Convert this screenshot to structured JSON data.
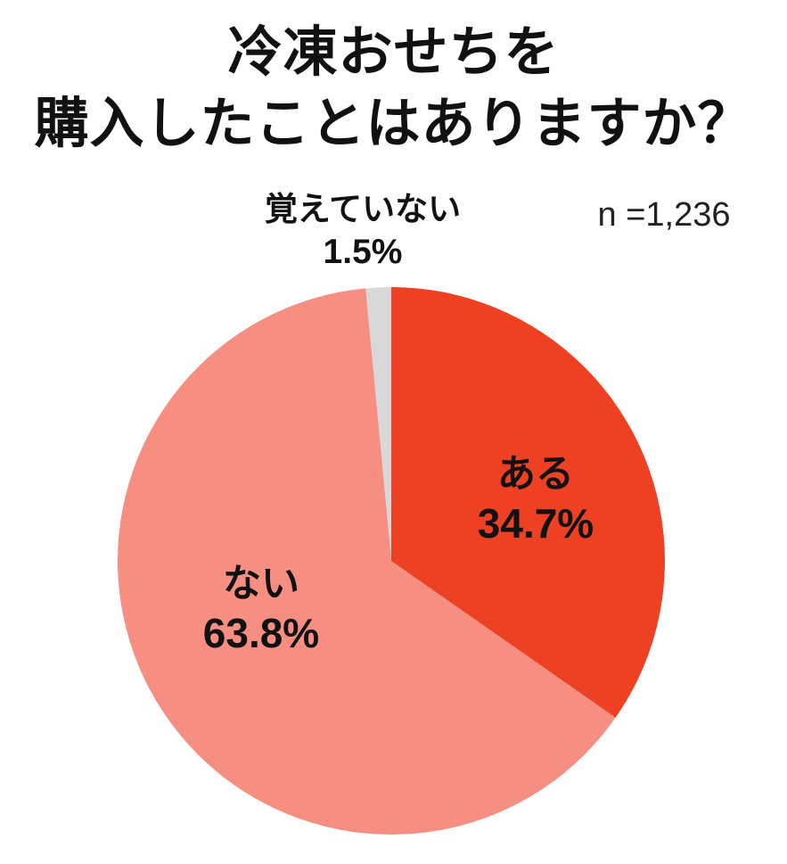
{
  "title": {
    "line1": "冷凍おせちを",
    "line2": "購入したことはありますか？"
  },
  "sample_size_label": "n =1,236",
  "chart_data": {
    "type": "pie",
    "title": "冷凍おせちを購入したことはありますか？",
    "n": 1236,
    "start_angle_deg": 0,
    "direction": "clockwise",
    "legend_position": "none",
    "slices": [
      {
        "label": "ある",
        "value": 34.7,
        "pct_label": "34.7%",
        "color": "#EE4123",
        "label_placement": "inside-right"
      },
      {
        "label": "ない",
        "value": 63.8,
        "pct_label": "63.8%",
        "color": "#F68E81",
        "label_placement": "inside-left"
      },
      {
        "label": "覚えていない",
        "value": 1.5,
        "pct_label": "1.5%",
        "color": "#D8D8D8",
        "label_placement": "outside-top"
      }
    ]
  }
}
